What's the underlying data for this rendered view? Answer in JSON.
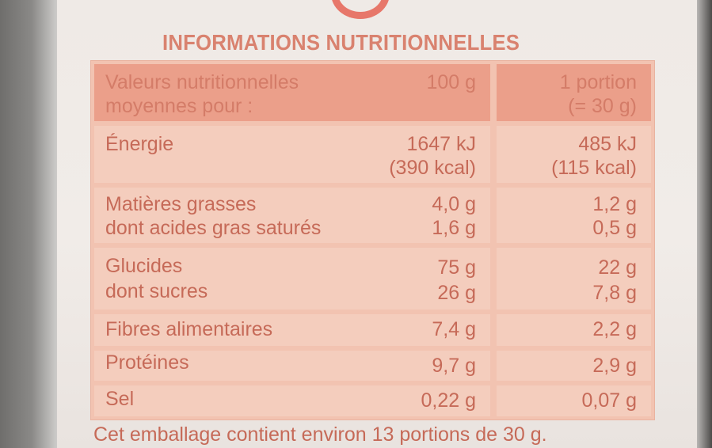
{
  "title": "INFORMATIONS NUTRITIONNELLES",
  "header": {
    "label_line1": "Valeurs nutritionnelles",
    "label_line2": "moyennes pour :",
    "col_100g": "100 g",
    "col_portion_line1": "1 portion",
    "col_portion_line2": "(= 30 g)"
  },
  "rows": [
    {
      "labels": [
        "Énergie"
      ],
      "per100": [
        "1647 kJ",
        "(390 kcal)"
      ],
      "portion": [
        "485 kJ",
        "(115 kcal)"
      ]
    },
    {
      "labels": [
        "Matières grasses",
        "dont acides gras saturés"
      ],
      "per100": [
        "4,0 g",
        "1,6 g"
      ],
      "portion": [
        "1,2 g",
        "0,5 g"
      ]
    },
    {
      "labels": [
        "Glucides",
        "dont sucres"
      ],
      "per100": [
        "75 g",
        "26 g"
      ],
      "portion": [
        "22 g",
        "7,8 g"
      ]
    },
    {
      "labels": [
        "Fibres alimentaires"
      ],
      "per100": [
        "7,4 g"
      ],
      "portion": [
        "2,2 g"
      ]
    },
    {
      "labels": [
        "Protéines"
      ],
      "per100": [
        "9,7 g"
      ],
      "portion": [
        "2,9 g"
      ]
    },
    {
      "labels": [
        "Sel"
      ],
      "per100": [
        "0,22 g"
      ],
      "portion": [
        "0,07 g"
      ]
    }
  ],
  "footer": "Cet emballage contient environ 13 portions de 30 g."
}
